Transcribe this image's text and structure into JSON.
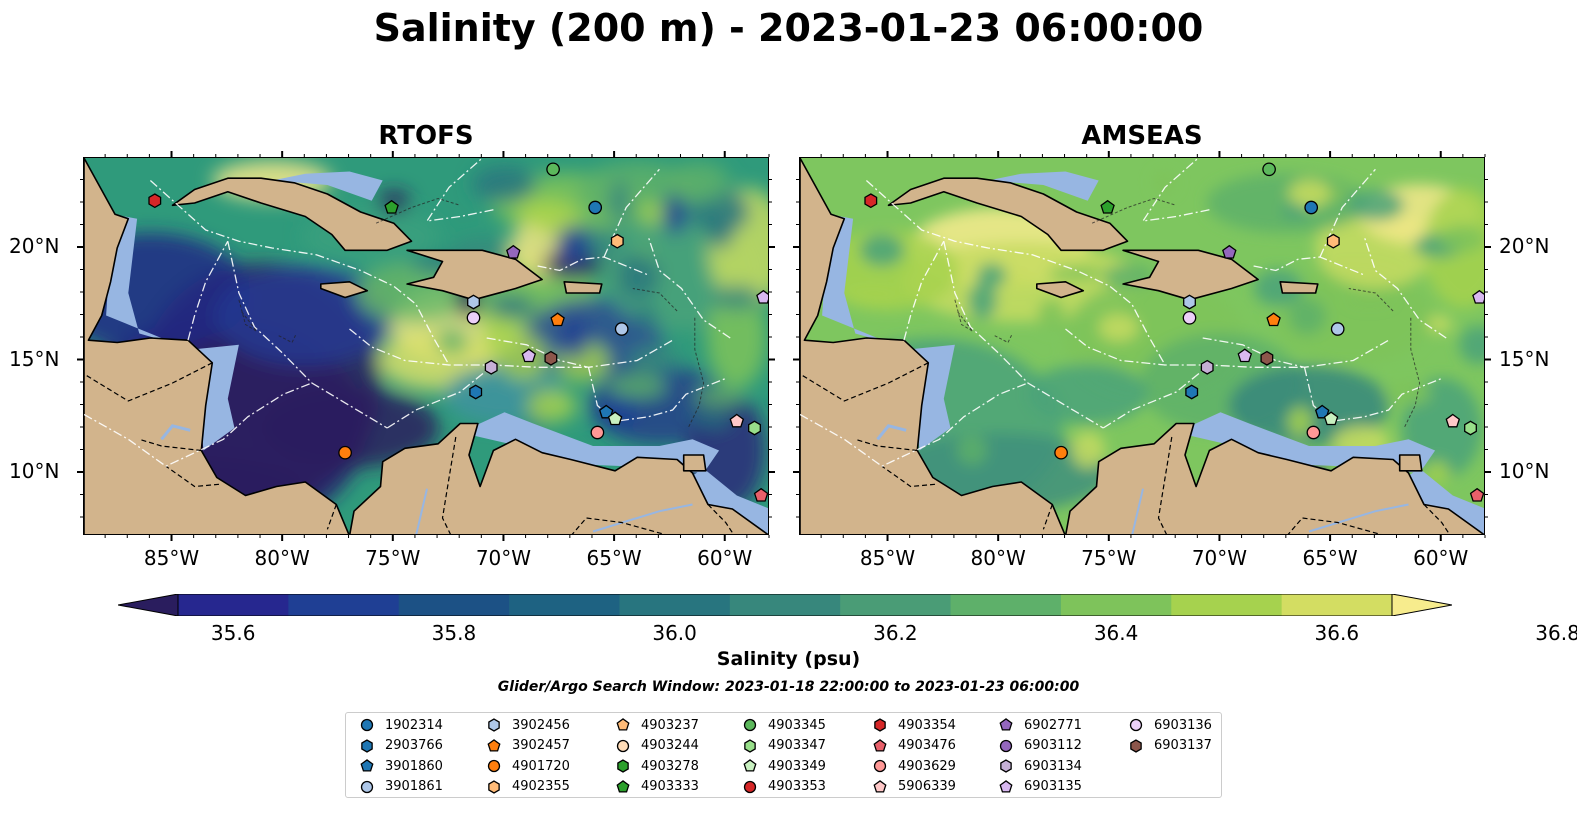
{
  "title": "Salinity (200 m) - 2023-01-23 06:00:00",
  "panels": [
    {
      "title": "RTOFS"
    },
    {
      "title": "AMSEAS"
    }
  ],
  "lon_ticks": [
    "85°W",
    "80°W",
    "75°W",
    "70°W",
    "65°W",
    "60°W"
  ],
  "lat_ticks": [
    "20°N",
    "15°N",
    "10°N"
  ],
  "colorbar": {
    "ticks": [
      "35.6",
      "35.8",
      "36.0",
      "36.2",
      "36.4",
      "36.6",
      "36.8"
    ],
    "label": "Salinity (psu)",
    "colors": [
      "#2a1d5e",
      "#26278f",
      "#1f3f94",
      "#1c5185",
      "#1e6282",
      "#28757f",
      "#37877c",
      "#4a9c76",
      "#5eb06a",
      "#7ec35b",
      "#a6d24e",
      "#d3dd62",
      "#f7ec8d"
    ]
  },
  "search_window": "Glider/Argo Search Window: 2023-01-18 22:00:00 to 2023-01-23 06:00:00",
  "legend": [
    {
      "label": "1902314",
      "marker": "circle",
      "color": "#1f77b4"
    },
    {
      "label": "2903766",
      "marker": "hexagon",
      "color": "#1f77b4"
    },
    {
      "label": "3901860",
      "marker": "pentagon",
      "color": "#1f77b4"
    },
    {
      "label": "3901861",
      "marker": "circle",
      "color": "#aec7e8"
    },
    {
      "label": "3902456",
      "marker": "hexagon",
      "color": "#aec7e8"
    },
    {
      "label": "3902457",
      "marker": "pentagon",
      "color": "#ff7f0e"
    },
    {
      "label": "4901720",
      "marker": "circle",
      "color": "#ff7f0e"
    },
    {
      "label": "4902355",
      "marker": "hexagon",
      "color": "#ffbb78"
    },
    {
      "label": "4903237",
      "marker": "pentagon",
      "color": "#ffbb78"
    },
    {
      "label": "4903244",
      "marker": "circle",
      "color": "#ffdcb8"
    },
    {
      "label": "4903278",
      "marker": "hexagon",
      "color": "#2ca02c"
    },
    {
      "label": "4903333",
      "marker": "pentagon",
      "color": "#2ca02c"
    },
    {
      "label": "4903345",
      "marker": "circle",
      "color": "#5cb85c"
    },
    {
      "label": "4903347",
      "marker": "hexagon",
      "color": "#98df8a"
    },
    {
      "label": "4903349",
      "marker": "pentagon",
      "color": "#c8f0c0"
    },
    {
      "label": "4903353",
      "marker": "circle",
      "color": "#d62728"
    },
    {
      "label": "4903354",
      "marker": "hexagon",
      "color": "#d62728"
    },
    {
      "label": "4903476",
      "marker": "pentagon",
      "color": "#e8606a"
    },
    {
      "label": "4903629",
      "marker": "circle",
      "color": "#ff9896"
    },
    {
      "label": "5906339",
      "marker": "pentagon",
      "color": "#ffc8c8"
    },
    {
      "label": "6902771",
      "marker": "pentagon",
      "color": "#9467bd"
    },
    {
      "label": "6903112",
      "marker": "circle",
      "color": "#9467bd"
    },
    {
      "label": "6903134",
      "marker": "hexagon",
      "color": "#c5b0d5"
    },
    {
      "label": "6903135",
      "marker": "pentagon",
      "color": "#d8b8f0"
    },
    {
      "label": "6903136",
      "marker": "circle",
      "color": "#ecd0f8"
    },
    {
      "label": "6903137",
      "marker": "hexagon",
      "color": "#8c564b"
    }
  ],
  "markers": [
    {
      "lon": -85.8,
      "lat": 22.1,
      "marker": "hexagon",
      "color": "#d62728"
    },
    {
      "lon": -75.1,
      "lat": 21.8,
      "marker": "pentagon",
      "color": "#2ca02c"
    },
    {
      "lon": -67.8,
      "lat": 23.5,
      "marker": "circle",
      "color": "#5cb85c"
    },
    {
      "lon": -65.9,
      "lat": 21.8,
      "marker": "circle",
      "color": "#1f77b4"
    },
    {
      "lon": -69.6,
      "lat": 19.8,
      "marker": "pentagon",
      "color": "#9467bd"
    },
    {
      "lon": -64.9,
      "lat": 20.3,
      "marker": "hexagon",
      "color": "#ffbb78"
    },
    {
      "lon": -71.4,
      "lat": 17.6,
      "marker": "hexagon",
      "color": "#aec7e8"
    },
    {
      "lon": -71.4,
      "lat": 16.9,
      "marker": "circle",
      "color": "#ecd0f8"
    },
    {
      "lon": -67.6,
      "lat": 16.8,
      "marker": "pentagon",
      "color": "#ff7f0e"
    },
    {
      "lon": -64.7,
      "lat": 16.4,
      "marker": "circle",
      "color": "#aec7e8"
    },
    {
      "lon": -70.6,
      "lat": 14.7,
      "marker": "hexagon",
      "color": "#c5b0d5"
    },
    {
      "lon": -68.9,
      "lat": 15.2,
      "marker": "pentagon",
      "color": "#d8b8f0"
    },
    {
      "lon": -67.9,
      "lat": 15.1,
      "marker": "hexagon",
      "color": "#8c564b"
    },
    {
      "lon": -71.3,
      "lat": 13.6,
      "marker": "hexagon",
      "color": "#1f77b4"
    },
    {
      "lon": -77.2,
      "lat": 10.9,
      "marker": "circle",
      "color": "#ff7f0e"
    },
    {
      "lon": -65.4,
      "lat": 12.7,
      "marker": "pentagon",
      "color": "#1f77b4"
    },
    {
      "lon": -65.0,
      "lat": 12.4,
      "marker": "pentagon",
      "color": "#c8f0c0"
    },
    {
      "lon": -65.8,
      "lat": 11.8,
      "marker": "circle",
      "color": "#ff9896"
    },
    {
      "lon": -59.5,
      "lat": 12.3,
      "marker": "pentagon",
      "color": "#ffc8c8"
    },
    {
      "lon": -58.7,
      "lat": 12.0,
      "marker": "hexagon",
      "color": "#98df8a"
    },
    {
      "lon": -58.3,
      "lat": 17.8,
      "marker": "pentagon",
      "color": "#d8b8f0"
    },
    {
      "lon": -58.4,
      "lat": 9.0,
      "marker": "pentagon",
      "color": "#e8606a"
    }
  ]
}
